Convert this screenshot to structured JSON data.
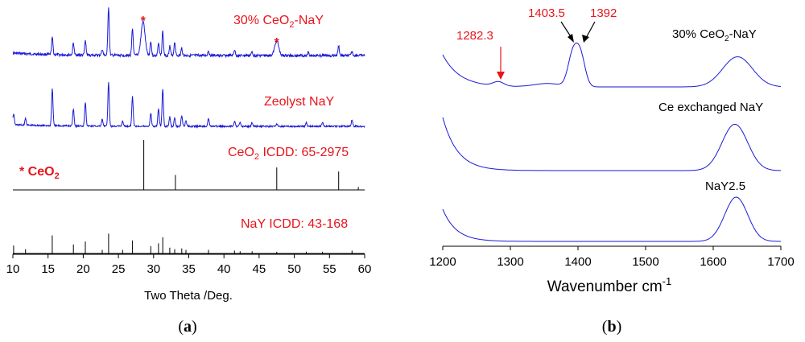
{
  "chart_data": [
    {
      "type": "line",
      "panel_label": "(a)",
      "xlabel": "Two Theta /Deg.",
      "ylabel": "",
      "xlim": [
        10,
        60
      ],
      "x_ticks": [
        10,
        15,
        20,
        25,
        30,
        35,
        40,
        45,
        50,
        55,
        60
      ],
      "series": [
        {
          "name": "30% CeO2-NaY",
          "label_main": "30% CeO",
          "label_sub": "2",
          "label_tail": "-NaY",
          "peaks": [
            {
              "x": 15.6,
              "h": 0.35
            },
            {
              "x": 18.6,
              "h": 0.25
            },
            {
              "x": 20.3,
              "h": 0.3
            },
            {
              "x": 22.7,
              "h": 0.12
            },
            {
              "x": 23.6,
              "h": 1.0
            },
            {
              "x": 27.0,
              "h": 0.55
            },
            {
              "x": 28.5,
              "h": 0.7
            },
            {
              "x": 29.6,
              "h": 0.3
            },
            {
              "x": 30.7,
              "h": 0.25
            },
            {
              "x": 31.3,
              "h": 0.5
            },
            {
              "x": 32.3,
              "h": 0.2
            },
            {
              "x": 33.0,
              "h": 0.28
            },
            {
              "x": 34.0,
              "h": 0.15
            },
            {
              "x": 37.8,
              "h": 0.1
            },
            {
              "x": 41.5,
              "h": 0.12
            },
            {
              "x": 44.0,
              "h": 0.08
            },
            {
              "x": 47.5,
              "h": 0.3
            },
            {
              "x": 52.0,
              "h": 0.08
            },
            {
              "x": 56.3,
              "h": 0.2
            },
            {
              "x": 58.2,
              "h": 0.08
            }
          ],
          "markers": [
            28.5,
            47.5
          ]
        },
        {
          "name": "Zeolyst NaY",
          "peaks": [
            {
              "x": 10.1,
              "h": 0.25
            },
            {
              "x": 11.8,
              "h": 0.15
            },
            {
              "x": 15.6,
              "h": 0.85
            },
            {
              "x": 18.6,
              "h": 0.4
            },
            {
              "x": 20.3,
              "h": 0.55
            },
            {
              "x": 22.7,
              "h": 0.15
            },
            {
              "x": 23.6,
              "h": 1.0
            },
            {
              "x": 25.6,
              "h": 0.12
            },
            {
              "x": 27.0,
              "h": 0.68
            },
            {
              "x": 29.6,
              "h": 0.3
            },
            {
              "x": 30.7,
              "h": 0.4
            },
            {
              "x": 31.3,
              "h": 0.85
            },
            {
              "x": 32.3,
              "h": 0.22
            },
            {
              "x": 33.0,
              "h": 0.18
            },
            {
              "x": 34.0,
              "h": 0.25
            },
            {
              "x": 34.6,
              "h": 0.12
            },
            {
              "x": 37.8,
              "h": 0.18
            },
            {
              "x": 41.5,
              "h": 0.12
            },
            {
              "x": 42.3,
              "h": 0.08
            },
            {
              "x": 44.0,
              "h": 0.08
            },
            {
              "x": 47.5,
              "h": 0.06
            },
            {
              "x": 51.7,
              "h": 0.08
            },
            {
              "x": 54.0,
              "h": 0.1
            },
            {
              "x": 58.2,
              "h": 0.15
            }
          ]
        },
        {
          "name": "CeO2 ICDD: 65-2975",
          "label_main": "CeO",
          "label_sub": "2",
          "label_tail": " ICDD: 65-2975",
          "sticks": [
            {
              "x": 28.6,
              "h": 1.0
            },
            {
              "x": 33.1,
              "h": 0.3
            },
            {
              "x": 47.5,
              "h": 0.45
            },
            {
              "x": 56.3,
              "h": 0.37
            },
            {
              "x": 59.1,
              "h": 0.06
            }
          ]
        },
        {
          "name": "NaY ICDD: 43-168",
          "sticks": [
            {
              "x": 10.1,
              "h": 0.22
            },
            {
              "x": 11.8,
              "h": 0.12
            },
            {
              "x": 15.6,
              "h": 0.5
            },
            {
              "x": 18.6,
              "h": 0.25
            },
            {
              "x": 20.3,
              "h": 0.33
            },
            {
              "x": 22.7,
              "h": 0.1
            },
            {
              "x": 23.6,
              "h": 0.55
            },
            {
              "x": 25.6,
              "h": 0.1
            },
            {
              "x": 27.0,
              "h": 0.36
            },
            {
              "x": 29.6,
              "h": 0.2
            },
            {
              "x": 30.7,
              "h": 0.28
            },
            {
              "x": 31.3,
              "h": 0.45
            },
            {
              "x": 32.3,
              "h": 0.16
            },
            {
              "x": 33.0,
              "h": 0.12
            },
            {
              "x": 34.0,
              "h": 0.14
            },
            {
              "x": 34.6,
              "h": 0.1
            },
            {
              "x": 37.8,
              "h": 0.1
            },
            {
              "x": 41.5,
              "h": 0.08
            },
            {
              "x": 42.3,
              "h": 0.06
            },
            {
              "x": 44.0,
              "h": 0.06
            },
            {
              "x": 47.5,
              "h": 0.05
            },
            {
              "x": 51.7,
              "h": 0.05
            },
            {
              "x": 54.0,
              "h": 0.05
            },
            {
              "x": 58.2,
              "h": 0.08
            }
          ]
        }
      ],
      "annotation_star": "*",
      "legend_ceo2_main": "* CeO",
      "legend_ceo2_sub": "2"
    },
    {
      "type": "line",
      "panel_label": "(b)",
      "xlabel_main": "Wavenumber cm",
      "xlabel_sup": "-1",
      "ylabel": "",
      "xlim": [
        1200,
        1700
      ],
      "x_ticks": [
        1200,
        1300,
        1400,
        1500,
        1600,
        1700
      ],
      "series": [
        {
          "name": "30% CeO2-NaY",
          "label_main": "30% CeO",
          "label_sub": "2",
          "label_tail": "-NaY",
          "bands": [
            {
              "x": 1282.3,
              "h": 0.1,
              "w": 8
            },
            {
              "x": 1392,
              "h": 0.72,
              "w": 7
            },
            {
              "x": 1403.5,
              "h": 0.74,
              "w": 7
            },
            {
              "x": 1355,
              "h": 0.08,
              "w": 20
            },
            {
              "x": 1636,
              "h": 0.72,
              "w": 22
            }
          ]
        },
        {
          "name": "Ce exchanged NaY",
          "bands": [
            {
              "x": 1632,
              "h": 0.9,
              "w": 19
            }
          ]
        },
        {
          "name": "NaY2.5",
          "bands": [
            {
              "x": 1634,
              "h": 1.0,
              "w": 17
            }
          ]
        }
      ],
      "annotations": [
        "1282.3",
        "1403.5",
        "1392"
      ]
    }
  ]
}
